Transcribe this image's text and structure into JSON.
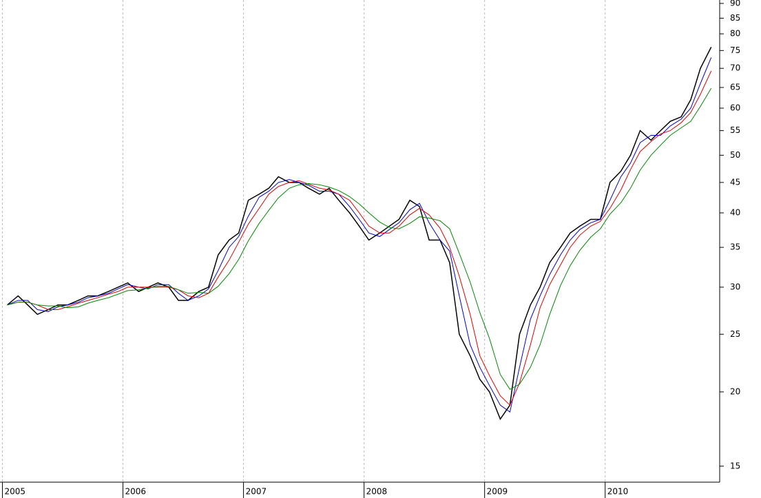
{
  "chart_data": {
    "type": "line",
    "log_scale_y": true,
    "grid": true,
    "x": [
      2005.04,
      2005.13,
      2005.21,
      2005.29,
      2005.38,
      2005.46,
      2005.54,
      2005.63,
      2005.71,
      2005.79,
      2005.88,
      2005.96,
      2006.04,
      2006.13,
      2006.21,
      2006.29,
      2006.38,
      2006.46,
      2006.54,
      2006.63,
      2006.71,
      2006.79,
      2006.88,
      2006.96,
      2007.04,
      2007.13,
      2007.21,
      2007.29,
      2007.38,
      2007.46,
      2007.54,
      2007.63,
      2007.71,
      2007.79,
      2007.88,
      2007.96,
      2008.04,
      2008.13,
      2008.21,
      2008.29,
      2008.38,
      2008.46,
      2008.54,
      2008.63,
      2008.71,
      2008.79,
      2008.88,
      2008.96,
      2009.04,
      2009.13,
      2009.21,
      2009.29,
      2009.38,
      2009.46,
      2009.54,
      2009.63,
      2009.71,
      2009.79,
      2009.88,
      2009.96,
      2010.04,
      2010.13,
      2010.21,
      2010.29,
      2010.38,
      2010.46,
      2010.54,
      2010.63,
      2010.71,
      2010.79,
      2010.88
    ],
    "series": [
      {
        "color": "#000000",
        "values": [
          28,
          29,
          28,
          27,
          27.5,
          28,
          28,
          28.5,
          29,
          29,
          29.5,
          30,
          30.5,
          29.5,
          30,
          30.5,
          30,
          28.5,
          28.5,
          29.5,
          30,
          34,
          36,
          37,
          42,
          43,
          44,
          46,
          45,
          45,
          44,
          43,
          44,
          42,
          40,
          38,
          36,
          37,
          38,
          39,
          42,
          41,
          36,
          36,
          33,
          25,
          23,
          21,
          20,
          18,
          19,
          25,
          28,
          30,
          33,
          35,
          37,
          38,
          39,
          39,
          45,
          47,
          50,
          55,
          53,
          55,
          57,
          58,
          62,
          70,
          76
        ]
      },
      {
        "color": "#0000cc",
        "values": [
          28,
          28.5,
          28.5,
          27.5,
          27.3,
          27.8,
          28,
          28.3,
          28.8,
          29,
          29.3,
          29.8,
          30.3,
          30,
          29.8,
          30.3,
          30.3,
          29.3,
          28.5,
          29,
          29.8,
          32,
          35,
          36.5,
          39.5,
          42.5,
          43.5,
          45,
          45.5,
          45,
          44.5,
          43.5,
          43.5,
          43,
          41,
          39,
          37,
          36.5,
          37.5,
          38.5,
          40.5,
          41.5,
          38.5,
          36,
          34.5,
          29,
          24,
          22,
          20.5,
          19,
          18.5,
          22,
          26.5,
          29,
          31.5,
          34,
          36,
          37.5,
          38.5,
          39,
          42,
          46,
          48.5,
          52.5,
          54,
          54,
          56,
          57.5,
          60,
          66,
          73
        ]
      },
      {
        "color": "#dd0000",
        "values": [
          28,
          28.3,
          28.3,
          28,
          27.5,
          27.5,
          27.8,
          28.2,
          28.5,
          28.8,
          29.2,
          29.5,
          30,
          30,
          30,
          30,
          30,
          29.7,
          29,
          28.8,
          29.3,
          31.2,
          33.3,
          35.7,
          38.3,
          40.7,
          43,
          44.3,
          45,
          45.3,
          44.7,
          44,
          43.7,
          43,
          42,
          40,
          38,
          37,
          37,
          38,
          39.7,
          40.7,
          39.7,
          37.7,
          35,
          31.3,
          27,
          23,
          21.3,
          19.7,
          19,
          20.7,
          24,
          27.7,
          30.3,
          32.7,
          35,
          36.7,
          38,
          38.7,
          40.7,
          43.7,
          47.3,
          50.7,
          52.7,
          54.3,
          55,
          56.7,
          59,
          63.3,
          69.3
        ]
      },
      {
        "color": "#008800",
        "values": [
          28,
          28.3,
          28.3,
          28,
          27.9,
          27.9,
          27.7,
          27.8,
          28.2,
          28.5,
          28.8,
          29.2,
          29.6,
          29.7,
          29.9,
          30.1,
          30.1,
          29.7,
          29.3,
          29.4,
          29.3,
          30.1,
          31.6,
          33.4,
          35.9,
          38.4,
          40.4,
          42.4,
          44,
          44.6,
          44.8,
          44.6,
          44.2,
          43.6,
          42.6,
          41.4,
          40,
          38.6,
          37.8,
          37.6,
          38.4,
          39.4,
          39.2,
          38.8,
          37.6,
          34.2,
          30.6,
          27.2,
          24.6,
          21.4,
          20.2,
          20.6,
          22,
          24,
          27,
          30.2,
          32.6,
          34.6,
          36.4,
          37.6,
          39.8,
          41.6,
          44,
          47.2,
          50,
          52,
          54,
          55.6,
          57,
          60.4,
          64.8
        ]
      }
    ],
    "xlim": [
      2004.98,
      2010.95
    ],
    "xticks": [
      2005,
      2006,
      2007,
      2008,
      2009,
      2010
    ],
    "ylim": [
      14.1,
      91.2
    ],
    "yticks": [
      15,
      20,
      25,
      30,
      35,
      40,
      45,
      50,
      55,
      60,
      65,
      70,
      75,
      80,
      85,
      90
    ]
  }
}
